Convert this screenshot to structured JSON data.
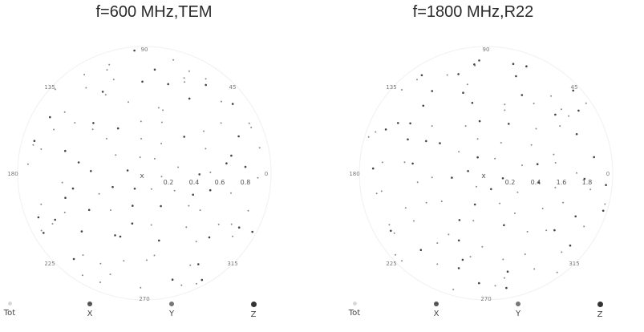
{
  "chart_data": [
    {
      "type": "scatter",
      "subtype": "polar",
      "title": "f=600 MHz,TEM",
      "angle_labels": [
        "90",
        "45",
        "0",
        "315",
        "270",
        "225",
        "180",
        "135"
      ],
      "radial_labels": [
        "0.2",
        "0.4",
        "0.6",
        "0.8"
      ],
      "rmax": 0.9,
      "grid": false,
      "legend": {
        "placement": "bottom",
        "entries": [
          {
            "label": "Tot",
            "color": "#d8d8d8"
          },
          {
            "label": "X",
            "color": "#555555"
          },
          {
            "label": "Y",
            "color": "#777777"
          },
          {
            "label": "Z",
            "color": "#333333"
          }
        ]
      }
    },
    {
      "type": "scatter",
      "subtype": "polar",
      "title": "f=1800 MHz,R22",
      "angle_labels": [
        "90",
        "45",
        "0",
        "315",
        "270",
        "225",
        "180",
        "135"
      ],
      "radial_labels": [
        "0.2",
        "0.4",
        "1.6",
        "1.8"
      ],
      "rmax": 2.0,
      "grid": false,
      "legend": {
        "placement": "bottom",
        "entries": [
          {
            "label": "Tot",
            "color": "#d8d8d8"
          },
          {
            "label": "X",
            "color": "#555555"
          },
          {
            "label": "Y",
            "color": "#777777"
          },
          {
            "label": "Z",
            "color": "#333333"
          }
        ]
      }
    }
  ]
}
